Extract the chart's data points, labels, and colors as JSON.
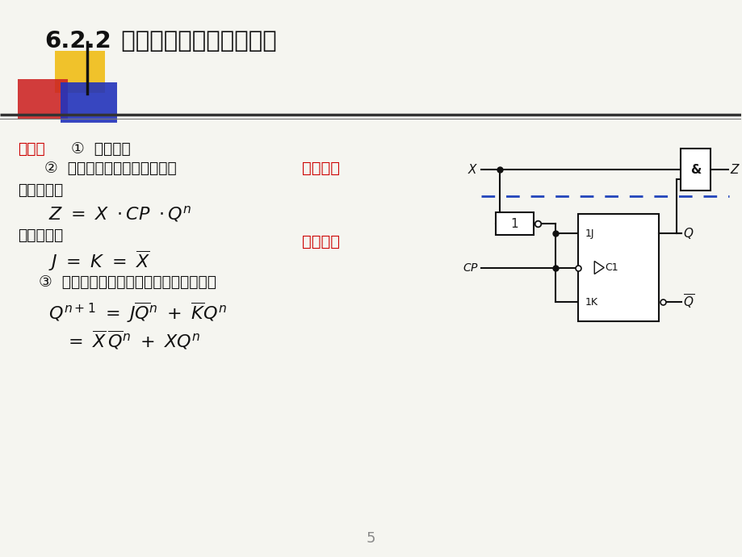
{
  "title_num": "6.2.2",
  "title_text": "  时序逻辑电路的分析举例",
  "bg_color": "#f5f5f0",
  "text_color": "#111111",
  "red_color": "#cc0000",
  "blue_color": "#0000cc",
  "deco_yellow": "#f0c020",
  "deco_red": "#cc2222",
  "deco_blue": "#2233bb",
  "page_num": "5"
}
